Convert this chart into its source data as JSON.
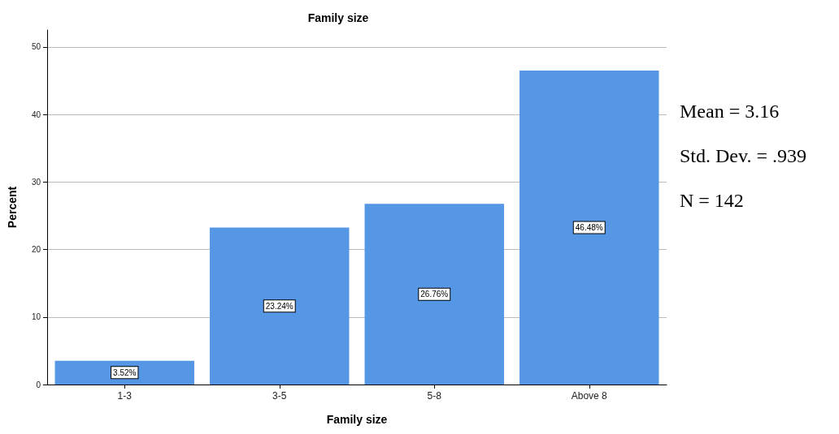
{
  "chart_data": {
    "type": "bar",
    "title": "Family size",
    "xlabel": "Family size",
    "ylabel": "Percent",
    "categories": [
      "1-3",
      "3-5",
      "5-8",
      "Above 8"
    ],
    "values": [
      3.52,
      23.24,
      26.76,
      46.48
    ],
    "value_labels": [
      "3.52%",
      "23.24%",
      "26.76%",
      "46.48%"
    ],
    "color": "#5596e5",
    "ylim": [
      0,
      52.5
    ],
    "yticks": [
      0,
      10,
      20,
      30,
      40,
      50
    ],
    "grid": "y",
    "annotations": [
      "Mean = 3.16",
      "Std. Dev. = .939",
      "N = 142"
    ]
  }
}
